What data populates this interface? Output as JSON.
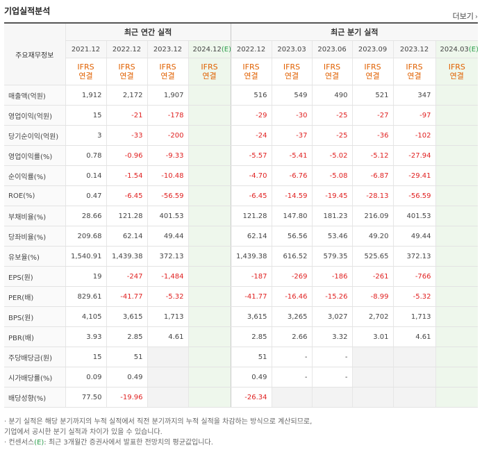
{
  "section_title": "기업실적분석",
  "more_label": "더보기",
  "more_arrow": "›",
  "row_header": "주요재무정보",
  "groups": {
    "annual": "최근 연간 실적",
    "quarter": "최근 분기 실적"
  },
  "periods": [
    {
      "label": "2021.12",
      "est": ""
    },
    {
      "label": "2022.12",
      "est": ""
    },
    {
      "label": "2023.12",
      "est": ""
    },
    {
      "label": "2024.12",
      "est": "(E)"
    },
    {
      "label": "2022.12",
      "est": ""
    },
    {
      "label": "2023.03",
      "est": ""
    },
    {
      "label": "2023.06",
      "est": ""
    },
    {
      "label": "2023.09",
      "est": ""
    },
    {
      "label": "2023.12",
      "est": ""
    },
    {
      "label": "2024.03",
      "est": "(E)"
    }
  ],
  "ifrs": {
    "line1": "IFRS",
    "line2": "연결"
  },
  "rows": [
    {
      "label": "매출액(억원)",
      "values": [
        "1,912",
        "2,172",
        "1,907",
        "",
        "516",
        "549",
        "490",
        "521",
        "347",
        ""
      ]
    },
    {
      "label": "영업이익(억원)",
      "values": [
        "15",
        "-21",
        "-178",
        "",
        "-29",
        "-30",
        "-25",
        "-27",
        "-97",
        ""
      ]
    },
    {
      "label": "당기순이익(억원)",
      "values": [
        "3",
        "-33",
        "-200",
        "",
        "-24",
        "-37",
        "-25",
        "-36",
        "-102",
        ""
      ]
    },
    {
      "label": "영업이익률(%)",
      "values": [
        "0.78",
        "-0.96",
        "-9.33",
        "",
        "-5.57",
        "-5.41",
        "-5.02",
        "-5.12",
        "-27.94",
        ""
      ]
    },
    {
      "label": "순이익률(%)",
      "values": [
        "0.14",
        "-1.54",
        "-10.48",
        "",
        "-4.70",
        "-6.76",
        "-5.08",
        "-6.87",
        "-29.41",
        ""
      ]
    },
    {
      "label": "ROE(%)",
      "values": [
        "0.47",
        "-6.45",
        "-56.59",
        "",
        "-6.45",
        "-14.59",
        "-19.45",
        "-28.13",
        "-56.59",
        ""
      ]
    },
    {
      "label": "부채비율(%)",
      "values": [
        "28.66",
        "121.28",
        "401.53",
        "",
        "121.28",
        "147.80",
        "181.23",
        "216.09",
        "401.53",
        ""
      ]
    },
    {
      "label": "당좌비율(%)",
      "values": [
        "209.68",
        "62.14",
        "49.44",
        "",
        "62.14",
        "56.56",
        "53.46",
        "49.20",
        "49.44",
        ""
      ]
    },
    {
      "label": "유보율(%)",
      "values": [
        "1,540.91",
        "1,439.38",
        "372.13",
        "",
        "1,439.38",
        "616.52",
        "579.35",
        "525.65",
        "372.13",
        ""
      ]
    },
    {
      "label": "EPS(원)",
      "values": [
        "19",
        "-247",
        "-1,484",
        "",
        "-187",
        "-269",
        "-186",
        "-261",
        "-766",
        ""
      ]
    },
    {
      "label": "PER(배)",
      "values": [
        "829.61",
        "-41.77",
        "-5.32",
        "",
        "-41.77",
        "-16.46",
        "-15.26",
        "-8.99",
        "-5.32",
        ""
      ]
    },
    {
      "label": "BPS(원)",
      "values": [
        "4,105",
        "3,615",
        "1,713",
        "",
        "3,615",
        "3,265",
        "3,027",
        "2,702",
        "1,713",
        ""
      ]
    },
    {
      "label": "PBR(배)",
      "values": [
        "3.93",
        "2.85",
        "4.61",
        "",
        "2.85",
        "2.66",
        "3.32",
        "3.01",
        "4.61",
        ""
      ]
    },
    {
      "label": "주당배당금(원)",
      "values": [
        "15",
        "51",
        "",
        "",
        "51",
        "-",
        "-",
        "",
        "",
        ""
      ]
    },
    {
      "label": "시가배당률(%)",
      "values": [
        "0.09",
        "0.49",
        "",
        "",
        "0.49",
        "-",
        "-",
        "",
        "",
        ""
      ]
    },
    {
      "label": "배당성향(%)",
      "values": [
        "77.50",
        "-19.96",
        "",
        "",
        "-26.34",
        "",
        "",
        "",
        "",
        ""
      ]
    }
  ],
  "notes": {
    "line1": "· 분기 실적은 해당 분기까지의 누적 실적에서 직전 분기까지의 누적 실적을 차감하는 방식으로 계산되므로,",
    "line2": "  기업에서 공시한 분기 실적과 차이가 있을 수 있습니다.",
    "line3_pre": "· 컨센서스",
    "line3_e": "(E)",
    "line3_post": ": 최근 3개월간 증권사에서 발표한 전망치의 평균값입니다."
  }
}
